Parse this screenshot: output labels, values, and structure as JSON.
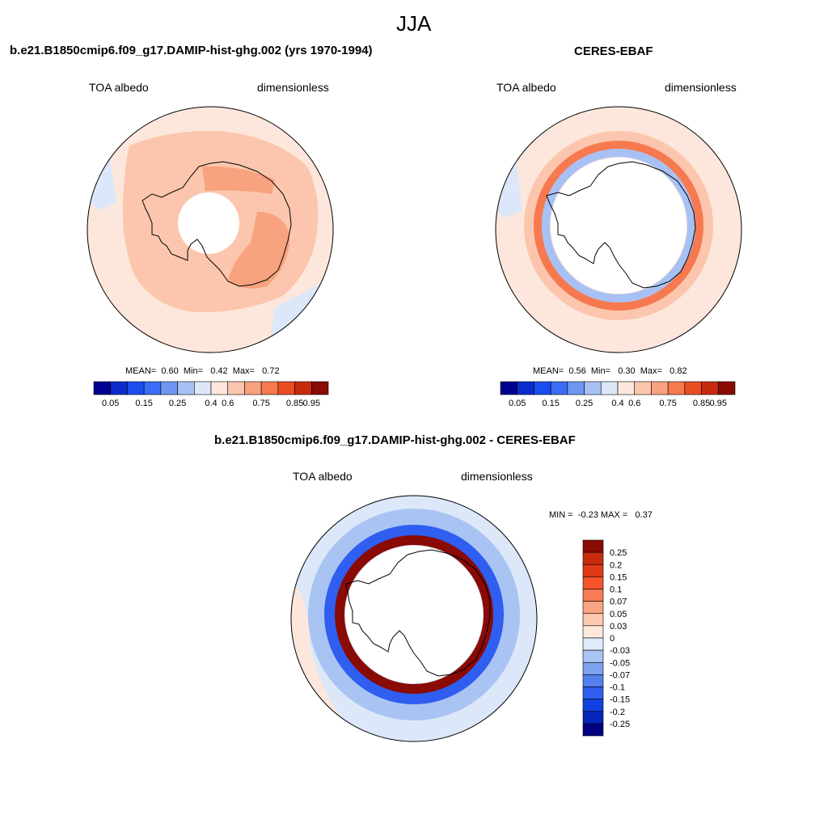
{
  "figure": {
    "title": "JJA",
    "panels": [
      {
        "id": "model",
        "header": "b.e21.B1850cmip6.f09_g17.DAMIP-hist-ghg.002 (yrs 1970-1994)",
        "variable": "TOA albedo",
        "units": "dimensionless",
        "stats": {
          "mean_label": "MEAN=",
          "mean": "0.60",
          "min_label": "Min=",
          "min": "0.42",
          "max_label": "Max=",
          "max": "0.72"
        },
        "colorbar": {
          "colors": [
            "#000090",
            "#0a2ccc",
            "#1a4df0",
            "#3a6cf5",
            "#6e96f2",
            "#a7c1f4",
            "#dce8f9",
            "#fde7dc",
            "#fbc6ad",
            "#f8a27f",
            "#f67950",
            "#ea4d22",
            "#c72a0f",
            "#8a0a04"
          ],
          "ticks": [
            "0.05",
            "0.15",
            "0.25",
            "0.4",
            "0.6",
            "0.75",
            "0.85",
            "0.95"
          ]
        }
      },
      {
        "id": "obs",
        "header": "CERES-EBAF",
        "variable": "TOA albedo",
        "units": "dimensionless",
        "stats": {
          "mean_label": "MEAN=",
          "mean": "0.56",
          "min_label": "Min=",
          "min": "0.30",
          "max_label": "Max=",
          "max": "0.82"
        },
        "colorbar": {
          "colors": [
            "#000090",
            "#0a2ccc",
            "#1a4df0",
            "#3a6cf5",
            "#6e96f2",
            "#a7c1f4",
            "#dce8f9",
            "#fde7dc",
            "#fbc6ad",
            "#f8a27f",
            "#f67950",
            "#ea4d22",
            "#c72a0f",
            "#8a0a04"
          ],
          "ticks": [
            "0.05",
            "0.15",
            "0.25",
            "0.4",
            "0.6",
            "0.75",
            "0.85",
            "0.95"
          ]
        }
      },
      {
        "id": "diff",
        "header": "b.e21.B1850cmip6.f09_g17.DAMIP-hist-ghg.002 - CERES-EBAF",
        "variable": "TOA albedo",
        "units": "dimensionless",
        "stats": {
          "min_label": "MIN =",
          "min": "-0.23",
          "max_label": "MAX =",
          "max": "0.37"
        },
        "colorbar": {
          "colors": [
            "#8a0a04",
            "#c72a0f",
            "#e03a16",
            "#f5542a",
            "#f67c55",
            "#f9a584",
            "#fbc8b0",
            "#fde8dc",
            "#dfeafa",
            "#a9c4f3",
            "#7ea1f0",
            "#5480ef",
            "#2f5ef0",
            "#1240e0",
            "#0524b8",
            "#000080"
          ],
          "labels": [
            "0.25",
            "0.2",
            "0.15",
            "0.1",
            "0.07",
            "0.05",
            "0.03",
            "0",
            "-0.03",
            "-0.05",
            "-0.07",
            "-0.1",
            "-0.15",
            "-0.2",
            "-0.25"
          ]
        }
      }
    ],
    "map_colors": {
      "ocean_bg_model": "#fde7dc",
      "ice_band_model": "#fbc6ad",
      "high_model": "#f8a27f",
      "coast": "#000000",
      "light_blue": "#dce8f9",
      "blue_band": "#a7c1f4",
      "red_band": "#f67950",
      "dark_red": "#8a0a04",
      "diff_blue": "#2f5ef0",
      "diff_lightblue": "#a9c4f3"
    }
  }
}
